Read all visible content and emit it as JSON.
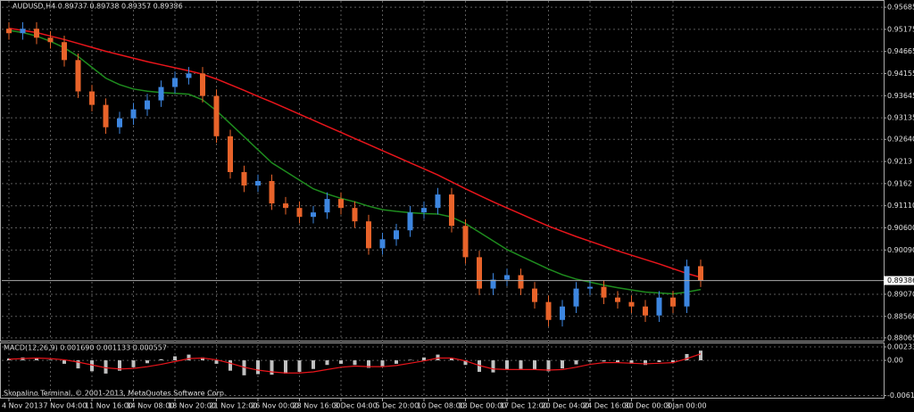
{
  "chart_data": [
    {
      "type": "candlestick",
      "title": "AUDUSD,H4 0.89737 0.89738 0.89357 0.89386",
      "categories": [
        "4 Nov 2013",
        null,
        null,
        "7 Nov 04:00",
        null,
        null,
        "11 Nov 16:00",
        null,
        null,
        "14 Nov 08:00",
        null,
        null,
        "18 Nov 20:00",
        null,
        null,
        "21 Nov 12:00",
        null,
        null,
        "26 Nov 00:00",
        null,
        null,
        "28 Nov 16:00",
        null,
        null,
        "3 Dec 04:00",
        null,
        null,
        "5 Dec 20:00",
        null,
        null,
        "10 Dec 08:00",
        null,
        null,
        "13 Dec 00:00",
        null,
        null,
        "17 Dec 12:00",
        null,
        null,
        "20 Dec 04:00",
        null,
        null,
        "24 Dec 16:00",
        null,
        null,
        "30 Dec 00:00",
        null,
        null,
        "3 Jan 00:00",
        null,
        null
      ],
      "open": [
        0.9519,
        0.95086,
        0.95189,
        0.94983,
        0.9488,
        0.94467,
        0.93744,
        0.93434,
        0.92918,
        0.93124,
        0.93331,
        0.93537,
        0.93847,
        0.94054,
        0.94157,
        0.93641,
        0.92711,
        0.91885,
        0.91576,
        0.91679,
        0.91163,
        0.91059,
        0.90853,
        0.90956,
        0.91266,
        0.91059,
        0.9075,
        0.9013,
        0.90337,
        0.90543,
        0.90956,
        0.91059,
        0.91369,
        0.90646,
        0.89924,
        0.89201,
        0.89407,
        0.89511,
        0.89201,
        0.88891,
        0.88478,
        0.88788,
        0.89201,
        0.89242,
        0.88994,
        0.88891,
        0.88788,
        0.88581,
        0.88994,
        0.88788,
        0.89717
      ],
      "high": [
        0.9534,
        0.95339,
        0.95339,
        0.95133,
        0.9503,
        0.94617,
        0.93894,
        0.93584,
        0.93274,
        0.93481,
        0.93687,
        0.93997,
        0.94204,
        0.94307,
        0.94307,
        0.93791,
        0.92861,
        0.92035,
        0.91829,
        0.91829,
        0.91313,
        0.91209,
        0.91106,
        0.91416,
        0.91416,
        0.91209,
        0.909,
        0.90487,
        0.90693,
        0.91106,
        0.91209,
        0.91519,
        0.91519,
        0.90796,
        0.90074,
        0.89557,
        0.89661,
        0.89661,
        0.89351,
        0.89041,
        0.88938,
        0.89351,
        0.89392,
        0.89392,
        0.89144,
        0.89041,
        0.88938,
        0.89144,
        0.89144,
        0.89867,
        0.89867
      ],
      "low": [
        0.94936,
        0.94936,
        0.94833,
        0.9473,
        0.94317,
        0.93594,
        0.93284,
        0.92768,
        0.92768,
        0.92974,
        0.93181,
        0.93387,
        0.93697,
        0.93904,
        0.93491,
        0.92561,
        0.91735,
        0.91426,
        0.91426,
        0.91013,
        0.90909,
        0.90703,
        0.90703,
        0.90806,
        0.90909,
        0.906,
        0.8998,
        0.8998,
        0.90187,
        0.90393,
        0.90806,
        0.90909,
        0.90496,
        0.89774,
        0.89051,
        0.89051,
        0.89257,
        0.89051,
        0.88741,
        0.88328,
        0.88328,
        0.88638,
        0.89051,
        0.88844,
        0.88741,
        0.88638,
        0.88431,
        0.88431,
        0.88638,
        0.88638,
        0.89236
      ],
      "close": [
        0.95086,
        0.95189,
        0.94983,
        0.9488,
        0.94467,
        0.93744,
        0.93434,
        0.92918,
        0.93124,
        0.93331,
        0.93537,
        0.93847,
        0.94054,
        0.94157,
        0.93641,
        0.92711,
        0.91885,
        0.91576,
        0.91679,
        0.91163,
        0.91059,
        0.90853,
        0.90956,
        0.91266,
        0.91059,
        0.9075,
        0.9013,
        0.90337,
        0.90543,
        0.90956,
        0.91059,
        0.91369,
        0.90646,
        0.89924,
        0.89201,
        0.89407,
        0.89511,
        0.89201,
        0.88891,
        0.88478,
        0.88788,
        0.89201,
        0.89242,
        0.88994,
        0.88891,
        0.88788,
        0.88581,
        0.88994,
        0.88788,
        0.89717,
        0.89386
      ],
      "up_color": "#3d86e0",
      "down_color": "#e8632a",
      "series": [
        {
          "color": "#e8151b",
          "values": [
            0.952,
            0.9515,
            0.951,
            0.9502,
            0.9494,
            0.9485,
            0.9476,
            0.9467,
            0.9459,
            0.9451,
            0.9443,
            0.9436,
            0.9429,
            0.9422,
            0.9414,
            0.9403,
            0.939,
            0.9377,
            0.9363,
            0.935,
            0.9336,
            0.9322,
            0.9308,
            0.9294,
            0.928,
            0.9266,
            0.9252,
            0.9238,
            0.9224,
            0.921,
            0.9196,
            0.9182,
            0.9166,
            0.915,
            0.9135,
            0.912,
            0.9106,
            0.9092,
            0.9078,
            0.9064,
            0.9052,
            0.904,
            0.9029,
            0.9018,
            0.9007,
            0.8997,
            0.8987,
            0.8977,
            0.8966,
            0.8955,
            0.8946
          ]
        },
        {
          "color": "#1e8c1e",
          "values": [
            0.9515,
            0.951,
            0.9502,
            0.949,
            0.9475,
            0.9455,
            0.943,
            0.9405,
            0.939,
            0.938,
            0.9375,
            0.9372,
            0.937,
            0.9368,
            0.9355,
            0.933,
            0.93,
            0.927,
            0.924,
            0.921,
            0.919,
            0.917,
            0.915,
            0.9138,
            0.9128,
            0.912,
            0.911,
            0.9102,
            0.9098,
            0.9095,
            0.9093,
            0.9092,
            0.9085,
            0.907,
            0.905,
            0.903,
            0.901,
            0.8995,
            0.898,
            0.8965,
            0.8952,
            0.8942,
            0.8935,
            0.8928,
            0.8922,
            0.8917,
            0.8912,
            0.891,
            0.8908,
            0.8912,
            0.8918
          ]
        }
      ],
      "ylim": [
        0.8798,
        0.9581
      ],
      "yticks": [
        0.95685,
        0.95175,
        0.94665,
        0.94155,
        0.93645,
        0.93135,
        {
          "value": 0.9264,
          "label": "0.92640"
        },
        0.9213,
        0.9162,
        {
          "value": 0.9111,
          "label": "0.91110"
        },
        {
          "value": 0.906,
          "label": "0.90600"
        },
        {
          "value": 0.9009,
          "label": "0.90090"
        },
        {
          "value": 0.8907,
          "label": "0.89070"
        },
        {
          "value": 0.8856,
          "label": "0.88560"
        },
        0.88065
      ],
      "current_price": 0.89386,
      "grid": true
    },
    {
      "type": "macd",
      "title": "MACD(12,26,9) 0.001690 0.001133 0.000557",
      "color": "#c0c0c0",
      "values": [
        0.0003,
        0.0005,
        0.0004,
        0.0001,
        -0.0006,
        -0.0014,
        -0.0019,
        -0.0023,
        -0.0018,
        -0.0012,
        -0.0005,
        0.0002,
        0.0007,
        0.001,
        0.0005,
        -0.0006,
        -0.0018,
        -0.0026,
        -0.0024,
        -0.0025,
        -0.0023,
        -0.002,
        -0.0015,
        -0.0008,
        -0.0006,
        -0.0008,
        -0.0013,
        -0.001,
        -0.0006,
        0.0001,
        0.0005,
        0.001,
        0.0004,
        -0.0008,
        -0.002,
        -0.0021,
        -0.0016,
        -0.0015,
        -0.0016,
        -0.0019,
        -0.0014,
        -0.0007,
        -0.0002,
        -0.0002,
        -0.0004,
        -0.0006,
        -0.0008,
        -0.0003,
        -0.0003,
        0.0011,
        0.00169
      ],
      "series": [
        {
          "color": "#e8151b",
          "values": [
            0.0002,
            0.0003,
            0.0004,
            0.0003,
            0.0001,
            -0.0003,
            -0.0008,
            -0.0013,
            -0.0015,
            -0.0014,
            -0.0011,
            -0.0007,
            -0.0002,
            0.0003,
            0.0004,
            0.0001,
            -0.0005,
            -0.0012,
            -0.0017,
            -0.002,
            -0.0022,
            -0.0022,
            -0.002,
            -0.0016,
            -0.0012,
            -0.001,
            -0.0011,
            -0.0011,
            -0.0009,
            -0.0005,
            -0.0001,
            0.0004,
            0.0004,
            -0.0001,
            -0.0009,
            -0.0015,
            -0.0016,
            -0.0016,
            -0.0016,
            -0.0017,
            -0.0016,
            -0.0012,
            -0.0007,
            -0.0004,
            -0.0004,
            -0.0005,
            -0.0006,
            -0.0005,
            -0.0004,
            0.0003,
            0.001133
          ]
        }
      ],
      "ylim": [
        -0.0065,
        0.0028
      ],
      "yticks": [
        0.002334,
        {
          "value": 0,
          "label": "0.00"
        },
        -0.00612
      ],
      "grid": true
    }
  ],
  "footer": "Skopalino Terminal, © 2001-2013, MetaQuotes Software Corp."
}
